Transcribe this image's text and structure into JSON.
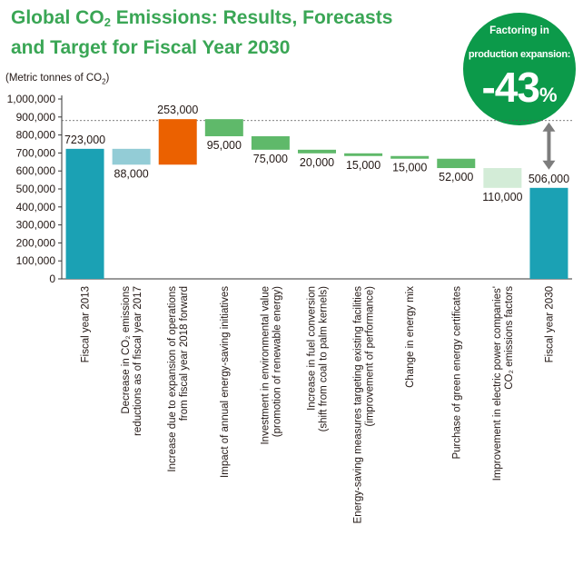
{
  "header": {
    "title_line1_pre": "Global CO",
    "title_line1_sub": "2",
    "title_line1_post": " Emissions: Results, Forecasts",
    "title_line2": "and Target for Fiscal Year 2030"
  },
  "unit": {
    "pre": "(Metric tonnes of CO",
    "sub": "2",
    "post": ")"
  },
  "badge": {
    "line1": "Factoring in",
    "line2": "production expansion:",
    "value": "-43",
    "suffix": "%"
  },
  "colors": {
    "total": "#1ba1b4",
    "decrease_2017": "#93ccd6",
    "increase": "#eb6100",
    "decrease": "#5fb96a",
    "decrease_light": "#d3ecd7",
    "title_green": "#3aa655",
    "badge_green": "#0c9a4a",
    "arrow": "#7d7d7d",
    "grid": "#cccccc"
  },
  "chart_data": {
    "type": "waterfall",
    "ylim": [
      0,
      1000000
    ],
    "yticks": [
      "0",
      "100,000",
      "200,000",
      "300,000",
      "400,000",
      "500,000",
      "600,000",
      "700,000",
      "800,000",
      "900,000",
      "1,000,000"
    ],
    "reference_line": 880000,
    "items": [
      {
        "category": "Fiscal year 2013",
        "kind": "total",
        "start": 0,
        "end": 723000,
        "label": "723,000",
        "color_key": "total"
      },
      {
        "category": "Decrease in CO₂ emissions reductions as of fiscal year 2017",
        "kind": "decrease",
        "start": 723000,
        "end": 635000,
        "label": "88,000",
        "color_key": "decrease_2017"
      },
      {
        "category": "Increase due to expansion of operations from fiscal year 2018 forward",
        "kind": "increase",
        "start": 635000,
        "end": 888000,
        "label": "253,000",
        "color_key": "increase"
      },
      {
        "category": "Impact of annual energy-saving initiatives",
        "kind": "decrease",
        "start": 888000,
        "end": 793000,
        "label": "95,000",
        "color_key": "decrease"
      },
      {
        "category": "Investment in environmental value (promotion of renewable energy)",
        "kind": "decrease",
        "start": 793000,
        "end": 718000,
        "label": "75,000",
        "color_key": "decrease"
      },
      {
        "category": "Increase in fuel conversion (shift from coal to palm kernels)",
        "kind": "decrease",
        "start": 718000,
        "end": 698000,
        "label": "20,000",
        "color_key": "decrease"
      },
      {
        "category": "Energy-saving measures targeting existing facilities (improvement of performance)",
        "kind": "decrease",
        "start": 698000,
        "end": 683000,
        "label": "15,000",
        "color_key": "decrease"
      },
      {
        "category": "Change in energy mix",
        "kind": "decrease",
        "start": 683000,
        "end": 668000,
        "label": "15,000",
        "color_key": "decrease"
      },
      {
        "category": "Purchase of green energy certificates",
        "kind": "decrease",
        "start": 668000,
        "end": 616000,
        "label": "52,000",
        "color_key": "decrease"
      },
      {
        "category": "Improvement in electric power companies' CO₂ emissions factors",
        "kind": "decrease",
        "start": 616000,
        "end": 506000,
        "label": "110,000",
        "color_key": "decrease_light"
      },
      {
        "category": "Fiscal year 2030",
        "kind": "total",
        "start": 0,
        "end": 506000,
        "label": "506,000",
        "color_key": "total"
      }
    ],
    "category_lines": [
      [
        "Fiscal year 2013"
      ],
      [
        "Decrease in CO₂ emissions",
        "reductions as of fiscal year 2017"
      ],
      [
        "Increase due to expansion of operations",
        "from fiscal year 2018 forward"
      ],
      [
        "Impact of annual energy-saving initiatives"
      ],
      [
        "Investment in environmental value",
        "(promotion of renewable energy)"
      ],
      [
        "Increase in fuel conversion",
        "(shift from coal to palm kernels)"
      ],
      [
        "Energy-saving measures targeting existing facilities",
        "(improvement of performance)"
      ],
      [
        "Change in energy mix"
      ],
      [
        "Purchase of green energy certificates"
      ],
      [
        "Improvement in electric power companies'",
        "CO₂ emissions factors"
      ],
      [
        "Fiscal year 2030"
      ]
    ]
  }
}
